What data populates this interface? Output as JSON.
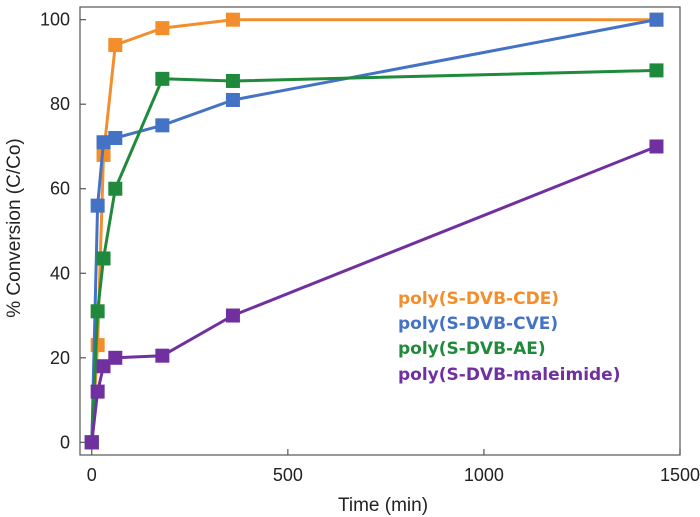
{
  "chart_data": {
    "type": "line",
    "title": "",
    "xlabel": "Time (min)",
    "ylabel": "% Conversion (C/Co)",
    "xlim": [
      -30,
      1500
    ],
    "ylim": [
      -3,
      103
    ],
    "xticks": [
      0,
      500,
      1000,
      1500
    ],
    "yticks": [
      0,
      20,
      40,
      60,
      80,
      100
    ],
    "grid": false,
    "legend_position": "center-right",
    "marker": "square",
    "series": [
      {
        "name": "poly(S-DVB-CDE)",
        "color": "#F28E2B",
        "points": [
          [
            0,
            0
          ],
          [
            15,
            23
          ],
          [
            30,
            68
          ],
          [
            60,
            94
          ],
          [
            180,
            98
          ],
          [
            360,
            100
          ],
          [
            1440,
            100
          ]
        ]
      },
      {
        "name": "poly(S-DVB-CVE)",
        "color": "#4472C4",
        "points": [
          [
            0,
            0
          ],
          [
            15,
            56
          ],
          [
            30,
            71
          ],
          [
            60,
            72
          ],
          [
            180,
            75
          ],
          [
            360,
            81
          ],
          [
            1440,
            100
          ]
        ]
      },
      {
        "name": "poly(S-DVB-AE)",
        "color": "#1F8A3B",
        "points": [
          [
            0,
            0
          ],
          [
            15,
            31
          ],
          [
            30,
            43.5
          ],
          [
            60,
            60
          ],
          [
            180,
            86
          ],
          [
            360,
            85.5
          ],
          [
            1440,
            88
          ]
        ]
      },
      {
        "name": "poly(S-DVB-maleimide)",
        "color": "#7030A0",
        "points": [
          [
            0,
            0
          ],
          [
            15,
            12
          ],
          [
            30,
            18
          ],
          [
            60,
            20
          ],
          [
            180,
            20.5
          ],
          [
            360,
            30
          ],
          [
            1440,
            70
          ]
        ]
      }
    ]
  }
}
